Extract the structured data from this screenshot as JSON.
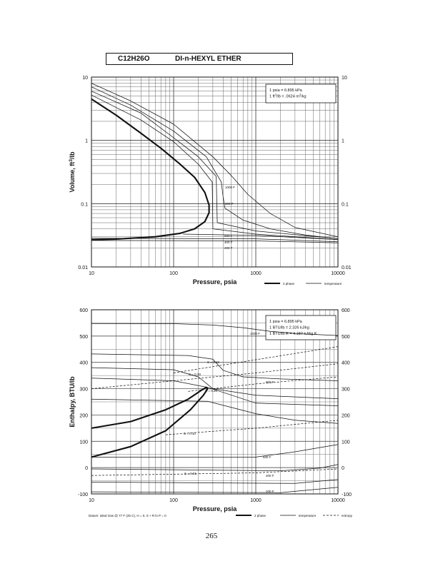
{
  "header": {
    "formula": "C12H26O",
    "compound": "DI-n-HEXYL ETHER"
  },
  "page_number": "265",
  "legend_labels": {
    "two_phase": "2 phase",
    "temperature": "temperature",
    "entropy": "entropy"
  },
  "datum_note": "Datum: Ideal Gas @ 77 F (25 C), H = 0, S + R ln P = 0",
  "chart_data": [
    {
      "type": "line",
      "xlabel": "Pressure,  psia",
      "ylabel": "Volume,  ft^3/lb",
      "xscale": "log",
      "yscale": "log",
      "xlim": [
        10,
        10000
      ],
      "ylim": [
        0.01,
        10
      ],
      "x_ticks": [
        "10",
        "100",
        "1000",
        "10000"
      ],
      "y_ticks": [
        "0.01",
        "0.1",
        "1",
        "10"
      ],
      "conversion_box": [
        "1 psia = 6.895 kPa",
        "1 ft^3/lb = .0624 m^3/kg"
      ],
      "legend": [
        "2 phase",
        "temperature"
      ],
      "series": [
        {
          "name": "2 phase",
          "style": "bold",
          "points": [
            [
              10,
              4.5
            ],
            [
              20,
              2.5
            ],
            [
              40,
              1.3
            ],
            [
              70,
              0.75
            ],
            [
              120,
              0.42
            ],
            [
              180,
              0.26
            ],
            [
              240,
              0.15
            ],
            [
              270,
              0.095
            ],
            [
              270,
              0.072
            ],
            [
              240,
              0.052
            ],
            [
              180,
              0.04
            ],
            [
              120,
              0.034
            ],
            [
              60,
              0.03
            ],
            [
              20,
              0.0275
            ],
            [
              10,
              0.027
            ]
          ]
        },
        {
          "label": "1000 F",
          "points": [
            [
              10,
              8
            ],
            [
              30,
              4.2
            ],
            [
              100,
              1.8
            ],
            [
              300,
              0.55
            ],
            [
              500,
              0.28
            ],
            [
              800,
              0.14
            ],
            [
              1500,
              0.07
            ],
            [
              3000,
              0.042
            ],
            [
              10000,
              0.03
            ]
          ]
        },
        {
          "label": "800 F",
          "points": [
            [
              10,
              7
            ],
            [
              30,
              3.6
            ],
            [
              100,
              1.4
            ],
            [
              250,
              0.55
            ],
            [
              380,
              0.22
            ],
            [
              400,
              0.13
            ],
            [
              420,
              0.085
            ],
            [
              700,
              0.055
            ],
            [
              1500,
              0.04
            ],
            [
              4000,
              0.032
            ],
            [
              10000,
              0.028
            ]
          ]
        },
        {
          "label": "",
          "points": [
            [
              10,
              6
            ],
            [
              40,
              2.7
            ],
            [
              100,
              1.1
            ],
            [
              200,
              0.55
            ],
            [
              330,
              0.27
            ],
            [
              340,
              0.05
            ],
            [
              1000,
              0.037
            ],
            [
              10000,
              0.028
            ]
          ]
        },
        {
          "label": "",
          "points": [
            [
              10,
              5.2
            ],
            [
              40,
              2.1
            ],
            [
              100,
              0.95
            ],
            [
              200,
              0.42
            ],
            [
              295,
              0.22
            ],
            [
              300,
              0.04
            ],
            [
              1000,
              0.033
            ],
            [
              10000,
              0.027
            ]
          ]
        },
        {
          "label": "600 F",
          "points": [
            [
              130,
              0.033
            ],
            [
              1000,
              0.0315
            ],
            [
              10000,
              0.027
            ]
          ]
        },
        {
          "label": "400 F",
          "points": [
            [
              10,
              0.0285
            ],
            [
              1000,
              0.0278
            ],
            [
              10000,
              0.025
            ]
          ]
        },
        {
          "label": "200 F",
          "points": [
            [
              10,
              0.0262
            ],
            [
              1000,
              0.0258
            ],
            [
              10000,
              0.024
            ]
          ]
        }
      ]
    },
    {
      "type": "line",
      "xlabel": "Pressure,  psia",
      "ylabel": "Enthalpy,  BTU/lb",
      "xscale": "log",
      "yscale": "linear",
      "xlim": [
        10,
        10000
      ],
      "ylim": [
        -100,
        600
      ],
      "x_ticks": [
        "10",
        "100",
        "1000",
        "10000"
      ],
      "y_ticks": [
        "-100",
        "0",
        "100",
        "200",
        "300",
        "400",
        "500",
        "600"
      ],
      "conversion_box": [
        "1 psia = 6.895 kPa",
        "1 BTU/lb = 2.326 kJ/kg",
        "1 BTU/lb R = 4.187 kJ/kg K"
      ],
      "legend": [
        "2 phase",
        "temperature",
        "entropy"
      ],
      "series": [
        {
          "name": "2 phase",
          "style": "bold",
          "points": [
            [
              10,
              150
            ],
            [
              30,
              175
            ],
            [
              80,
              220
            ],
            [
              150,
              260
            ],
            [
              220,
              295
            ],
            [
              250,
              305
            ],
            [
              260,
              300
            ],
            [
              230,
              275
            ],
            [
              160,
              220
            ],
            [
              80,
              140
            ],
            [
              30,
              80
            ],
            [
              10,
              40
            ]
          ]
        },
        {
          "label": "1000 F",
          "points": [
            [
              10,
              548
            ],
            [
              100,
              547
            ],
            [
              300,
              542
            ],
            [
              700,
              532
            ],
            [
              1500,
              518
            ],
            [
              3000,
              510
            ],
            [
              10000,
              502
            ]
          ]
        },
        {
          "label": "800 F",
          "points": [
            [
              10,
              432
            ],
            [
              150,
              426
            ],
            [
              300,
              412
            ],
            [
              400,
              370
            ],
            [
              700,
              345
            ],
            [
              2000,
              337
            ],
            [
              10000,
              330
            ]
          ]
        },
        {
          "label": "",
          "points": [
            [
              10,
              380
            ],
            [
              100,
              372
            ],
            [
              200,
              345
            ],
            [
              300,
              300
            ],
            [
              1000,
              275
            ],
            [
              10000,
              262
            ]
          ]
        },
        {
          "label": "",
          "points": [
            [
              10,
              340
            ],
            [
              100,
              330
            ],
            [
              260,
              305
            ],
            [
              1000,
              245
            ],
            [
              10000,
              235
            ]
          ]
        },
        {
          "label": "600 F",
          "points": [
            [
              10,
              260
            ],
            [
              260,
              252
            ],
            [
              1000,
              205
            ],
            [
              3000,
              180
            ],
            [
              10000,
              168
            ]
          ]
        },
        {
          "label": "",
          "points": [
            [
              10,
              40
            ],
            [
              1000,
              40
            ],
            [
              3000,
              60
            ],
            [
              10000,
              88
            ]
          ]
        },
        {
          "label": "400 F",
          "points": [
            [
              10,
              -5
            ],
            [
              2000,
              -12
            ],
            [
              6000,
              -2
            ],
            [
              10000,
              12
            ]
          ]
        },
        {
          "label": "",
          "points": [
            [
              10,
              -55
            ],
            [
              3000,
              -60
            ],
            [
              10000,
              -45
            ]
          ]
        },
        {
          "label": "200 F",
          "points": [
            [
              10,
              -92
            ],
            [
              2000,
              -95
            ],
            [
              10000,
              -75
            ]
          ]
        }
      ],
      "entropy_lines": [
        {
          "label": "S = 0.43",
          "points": [
            [
              100,
              360
            ],
            [
              1000,
              410
            ],
            [
              10000,
              460
            ]
          ]
        },
        {
          "label": "S = 0.38",
          "points": [
            [
              10,
              300
            ],
            [
              100,
              330
            ],
            [
              1000,
              360
            ],
            [
              10000,
              395
            ]
          ]
        },
        {
          "label": "S = 0.35",
          "points": [
            [
              150,
              290
            ],
            [
              1000,
              318
            ],
            [
              10000,
              345
            ]
          ]
        },
        {
          "label": "S = 0.10",
          "points": [
            [
              80,
              125
            ],
            [
              1000,
              150
            ],
            [
              10000,
              180
            ]
          ]
        },
        {
          "label": "S = 0.01",
          "points": [
            [
              10,
              -30
            ],
            [
              1000,
              -20
            ],
            [
              10000,
              -5
            ]
          ]
        }
      ]
    }
  ]
}
